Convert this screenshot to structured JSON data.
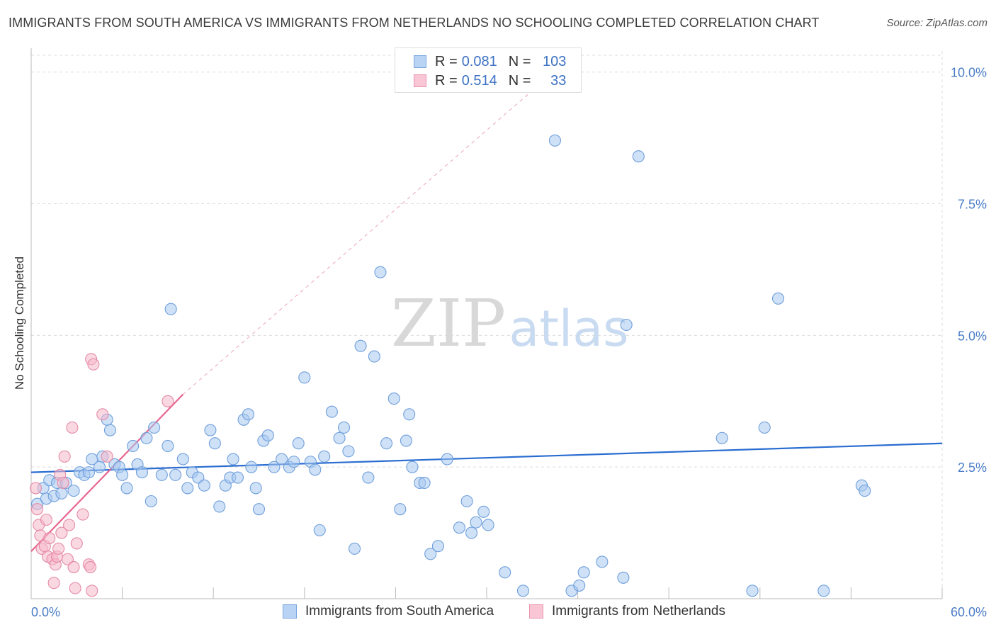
{
  "chart_data": {
    "type": "scatter",
    "title": "IMMIGRANTS FROM SOUTH AMERICA VS IMMIGRANTS FROM NETHERLANDS NO SCHOOLING COMPLETED CORRELATION CHART",
    "source": "Source: ZipAtlas.com",
    "ylabel": "No Schooling Completed",
    "xlabel": "",
    "xlim": [
      0,
      60
    ],
    "ylim": [
      0,
      10.4
    ],
    "x_tick_labels": {
      "min": "0.0%",
      "max": "60.0%"
    },
    "y_ticks": [
      {
        "value": 2.5,
        "label": "2.5%"
      },
      {
        "value": 5.0,
        "label": "5.0%"
      },
      {
        "value": 7.5,
        "label": "7.5%"
      },
      {
        "value": 10.0,
        "label": "10.0%"
      }
    ],
    "watermark": {
      "zip": "ZIP",
      "atlas": "atlas"
    },
    "legend": {
      "r_label": "R =",
      "n_label": "N =",
      "rows": [
        {
          "r": "0.081",
          "n": "103"
        },
        {
          "r": "0.514",
          "n": "33"
        }
      ]
    },
    "series": [
      {
        "name": "Immigrants from South America",
        "color": "#a8c8f0",
        "stroke": "#6f9fdb",
        "trend_color": "#2a6dd1",
        "trend": {
          "x": [
            0,
            60
          ],
          "y": [
            2.4,
            2.95
          ]
        },
        "points": [
          [
            0.4,
            1.8
          ],
          [
            0.8,
            2.1
          ],
          [
            1.0,
            1.9
          ],
          [
            1.2,
            2.25
          ],
          [
            1.5,
            1.95
          ],
          [
            1.7,
            2.2
          ],
          [
            2.0,
            2.0
          ],
          [
            2.3,
            2.2
          ],
          [
            2.8,
            2.05
          ],
          [
            3.2,
            2.4
          ],
          [
            3.5,
            2.35
          ],
          [
            3.8,
            2.4
          ],
          [
            4.0,
            2.65
          ],
          [
            4.5,
            2.5
          ],
          [
            4.7,
            2.7
          ],
          [
            5.0,
            3.4
          ],
          [
            5.2,
            3.2
          ],
          [
            5.5,
            2.55
          ],
          [
            5.8,
            2.5
          ],
          [
            6.0,
            2.35
          ],
          [
            6.3,
            2.1
          ],
          [
            6.7,
            2.9
          ],
          [
            7.0,
            2.55
          ],
          [
            7.3,
            2.4
          ],
          [
            7.6,
            3.05
          ],
          [
            7.9,
            1.85
          ],
          [
            8.1,
            3.25
          ],
          [
            8.6,
            2.35
          ],
          [
            9.0,
            2.9
          ],
          [
            9.2,
            5.5
          ],
          [
            9.5,
            2.35
          ],
          [
            10.0,
            2.65
          ],
          [
            10.3,
            2.1
          ],
          [
            10.6,
            2.4
          ],
          [
            11.0,
            2.3
          ],
          [
            11.4,
            2.15
          ],
          [
            11.8,
            3.2
          ],
          [
            12.1,
            2.95
          ],
          [
            12.4,
            1.75
          ],
          [
            12.8,
            2.15
          ],
          [
            13.1,
            2.3
          ],
          [
            13.3,
            2.65
          ],
          [
            13.6,
            2.3
          ],
          [
            14.0,
            3.4
          ],
          [
            14.3,
            3.5
          ],
          [
            14.5,
            2.5
          ],
          [
            14.8,
            2.1
          ],
          [
            15.0,
            1.7
          ],
          [
            15.3,
            3.0
          ],
          [
            15.6,
            3.1
          ],
          [
            16.0,
            2.5
          ],
          [
            16.5,
            2.65
          ],
          [
            17.0,
            2.5
          ],
          [
            17.3,
            2.6
          ],
          [
            17.6,
            2.95
          ],
          [
            18.0,
            4.2
          ],
          [
            18.4,
            2.6
          ],
          [
            18.7,
            2.45
          ],
          [
            19.0,
            1.3
          ],
          [
            19.3,
            2.7
          ],
          [
            19.8,
            3.55
          ],
          [
            20.3,
            3.05
          ],
          [
            20.6,
            3.25
          ],
          [
            20.9,
            2.8
          ],
          [
            21.3,
            0.95
          ],
          [
            21.7,
            4.8
          ],
          [
            22.2,
            2.3
          ],
          [
            22.6,
            4.6
          ],
          [
            23.0,
            6.2
          ],
          [
            23.4,
            2.95
          ],
          [
            23.9,
            3.8
          ],
          [
            24.3,
            1.7
          ],
          [
            24.7,
            3.0
          ],
          [
            24.9,
            3.5
          ],
          [
            25.1,
            2.5
          ],
          [
            25.6,
            2.2
          ],
          [
            25.9,
            2.2
          ],
          [
            26.3,
            0.85
          ],
          [
            26.8,
            1.0
          ],
          [
            27.4,
            2.65
          ],
          [
            28.2,
            1.35
          ],
          [
            28.7,
            1.85
          ],
          [
            29.0,
            1.25
          ],
          [
            29.3,
            1.45
          ],
          [
            29.8,
            1.65
          ],
          [
            30.1,
            1.4
          ],
          [
            31.2,
            0.5
          ],
          [
            32.4,
            0.15
          ],
          [
            34.5,
            8.7
          ],
          [
            35.6,
            0.15
          ],
          [
            36.1,
            0.25
          ],
          [
            36.4,
            0.5
          ],
          [
            37.6,
            0.7
          ],
          [
            39.0,
            0.4
          ],
          [
            39.2,
            5.2
          ],
          [
            40.0,
            8.4
          ],
          [
            45.5,
            3.05
          ],
          [
            47.5,
            0.15
          ],
          [
            48.3,
            3.25
          ],
          [
            49.2,
            5.7
          ],
          [
            52.2,
            0.15
          ],
          [
            54.7,
            2.15
          ],
          [
            54.9,
            2.05
          ]
        ]
      },
      {
        "name": "Immigrants from Netherlands",
        "color": "#f5b8cb",
        "stroke": "#e58aa6",
        "trend_color": "#e8648e",
        "trend": {
          "x": [
            0,
            10
          ],
          "y": [
            0.9,
            3.88
          ]
        },
        "trend_extension": {
          "x": [
            10,
            36
          ],
          "y": [
            3.88,
            10.4
          ]
        },
        "points": [
          [
            0.3,
            2.1
          ],
          [
            0.4,
            1.7
          ],
          [
            0.5,
            1.4
          ],
          [
            0.6,
            1.2
          ],
          [
            0.7,
            0.95
          ],
          [
            0.9,
            1.0
          ],
          [
            1.0,
            1.5
          ],
          [
            1.1,
            0.8
          ],
          [
            1.2,
            1.15
          ],
          [
            1.4,
            0.75
          ],
          [
            1.5,
            0.3
          ],
          [
            1.6,
            0.65
          ],
          [
            1.7,
            0.8
          ],
          [
            1.8,
            0.95
          ],
          [
            1.9,
            2.35
          ],
          [
            2.0,
            1.25
          ],
          [
            2.1,
            2.2
          ],
          [
            2.2,
            2.7
          ],
          [
            2.4,
            0.75
          ],
          [
            2.5,
            1.4
          ],
          [
            2.7,
            3.25
          ],
          [
            2.8,
            0.6
          ],
          [
            2.9,
            0.2
          ],
          [
            3.0,
            1.05
          ],
          [
            3.4,
            1.6
          ],
          [
            3.8,
            0.65
          ],
          [
            3.9,
            0.6
          ],
          [
            3.95,
            4.55
          ],
          [
            4.0,
            0.15
          ],
          [
            4.1,
            4.45
          ],
          [
            4.7,
            3.5
          ],
          [
            5.0,
            2.7
          ],
          [
            9.0,
            3.75
          ]
        ]
      }
    ]
  }
}
